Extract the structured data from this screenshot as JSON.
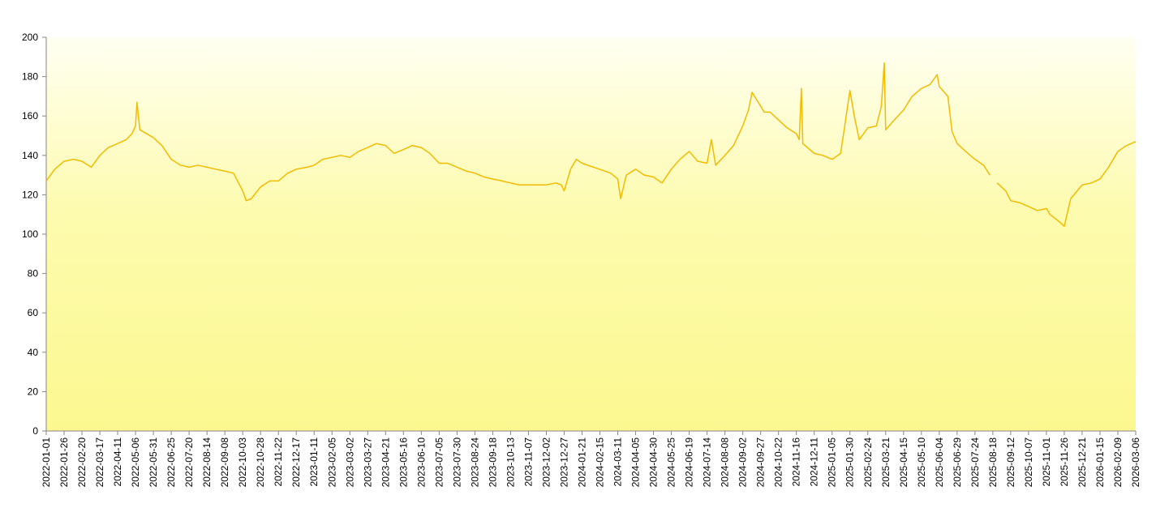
{
  "chart_data": {
    "type": "line",
    "color": "#f2bb00",
    "x": [
      "2022-01-01",
      "2022-01-13",
      "2022-01-26",
      "2022-02-08",
      "2022-02-20",
      "2022-03-05",
      "2022-03-17",
      "2022-03-29",
      "2022-04-11",
      "2022-04-23",
      "2022-05-01",
      "2022-05-06",
      "2022-05-08",
      "2022-05-12",
      "2022-05-31",
      "2022-06-12",
      "2022-06-25",
      "2022-07-08",
      "2022-07-20",
      "2022-08-01",
      "2022-08-14",
      "2022-08-26",
      "2022-09-08",
      "2022-09-20",
      "2022-10-03",
      "2022-10-08",
      "2022-10-15",
      "2022-10-28",
      "2022-11-10",
      "2022-11-22",
      "2022-12-05",
      "2022-12-17",
      "2023-01-01",
      "2023-01-11",
      "2023-01-23",
      "2023-02-05",
      "2023-02-17",
      "2023-03-02",
      "2023-03-14",
      "2023-03-27",
      "2023-04-08",
      "2023-04-21",
      "2023-05-03",
      "2023-05-16",
      "2023-05-28",
      "2023-06-10",
      "2023-06-22",
      "2023-07-05",
      "2023-07-17",
      "2023-07-30",
      "2023-08-12",
      "2023-08-24",
      "2023-09-06",
      "2023-09-18",
      "2023-10-01",
      "2023-10-13",
      "2023-10-25",
      "2023-11-07",
      "2023-11-20",
      "2023-12-02",
      "2023-12-15",
      "2023-12-23",
      "2023-12-27",
      "2024-01-05",
      "2024-01-13",
      "2024-01-21",
      "2024-03-01",
      "2024-03-11",
      "2024-03-15",
      "2024-03-23",
      "2024-04-05",
      "2024-04-17",
      "2024-04-30",
      "2024-05-12",
      "2024-05-25",
      "2024-06-06",
      "2024-06-19",
      "2024-07-01",
      "2024-07-14",
      "2024-07-20",
      "2024-07-26",
      "2024-08-08",
      "2024-08-20",
      "2024-09-02",
      "2024-09-10",
      "2024-09-15",
      "2024-09-27",
      "2024-10-02",
      "2024-10-10",
      "2024-10-22",
      "2024-11-03",
      "2024-11-16",
      "2024-11-20",
      "2024-11-23",
      "2024-11-25",
      "2024-12-11",
      "2024-12-23",
      "2025-01-05",
      "2025-01-17",
      "2025-01-30",
      "2025-02-05",
      "2025-02-12",
      "2025-02-24",
      "2025-03-08",
      "2025-03-15",
      "2025-03-19",
      "2025-03-21",
      "2025-04-02",
      "2025-04-15",
      "2025-04-27",
      "2025-05-10",
      "2025-05-22",
      "2025-06-01",
      "2025-06-04",
      "2025-06-16",
      "2025-06-22",
      "2025-06-29",
      "2025-07-11",
      "2025-07-24",
      "2025-08-05",
      "2025-08-14",
      "2025-08-18",
      "2025-08-24",
      "2025-09-05",
      "2025-09-12",
      "2025-09-24",
      "2025-10-07",
      "2025-10-19",
      "2025-11-01",
      "2025-11-06",
      "2025-11-20",
      "2025-11-26",
      "2025-12-05",
      "2025-12-21",
      "2026-01-03",
      "2026-01-15",
      "2026-01-27",
      "2026-02-09",
      "2026-02-21",
      "2026-03-06"
    ],
    "values": [
      127,
      133,
      137,
      138,
      137,
      134,
      140,
      144,
      146,
      148,
      151,
      155,
      167,
      153,
      149,
      145,
      138,
      135,
      134,
      135,
      134,
      133,
      132,
      131,
      122,
      117,
      118,
      124,
      127,
      127,
      131,
      133,
      134,
      135,
      138,
      139,
      140,
      139,
      142,
      144,
      146,
      145,
      141,
      143,
      145,
      144,
      141,
      136,
      136,
      134,
      132,
      131,
      129,
      128,
      127,
      126,
      125,
      125,
      125,
      125,
      126,
      125,
      122,
      133,
      138,
      136,
      131,
      128,
      118,
      130,
      133,
      130,
      129,
      126,
      133,
      138,
      142,
      137,
      136,
      148,
      135,
      140,
      145,
      155,
      163,
      172,
      165,
      162,
      162,
      158,
      154,
      151,
      148,
      174,
      146,
      141,
      140,
      138,
      141,
      173,
      160,
      148,
      154,
      155,
      165,
      187,
      153,
      158,
      163,
      170,
      174,
      176,
      181,
      175,
      170,
      152,
      146,
      142,
      138,
      135,
      130,
      null,
      126,
      122,
      117,
      116,
      114,
      112,
      113,
      110,
      106,
      104,
      118,
      125,
      126,
      128,
      134,
      142,
      145,
      147
    ],
    "xlim": [
      "2022-01-01",
      "2026-03-06"
    ],
    "xticks": [
      "2022-01-01",
      "2022-01-26",
      "2022-02-20",
      "2022-03-17",
      "2022-04-11",
      "2022-05-06",
      "2022-05-31",
      "2022-06-25",
      "2022-07-20",
      "2022-08-14",
      "2022-09-08",
      "2022-10-03",
      "2022-10-28",
      "2022-11-22",
      "2022-12-17",
      "2023-01-11",
      "2023-02-05",
      "2023-03-02",
      "2023-03-27",
      "2023-04-21",
      "2023-05-16",
      "2023-06-10",
      "2023-07-05",
      "2023-07-30",
      "2023-08-24",
      "2023-09-18",
      "2023-10-13",
      "2023-11-07",
      "2023-12-02",
      "2023-12-27",
      "2024-01-21",
      "2024-02-15",
      "2024-03-11",
      "2024-04-05",
      "2024-04-30",
      "2024-05-25",
      "2024-06-19",
      "2024-07-14",
      "2024-08-08",
      "2024-09-02",
      "2024-09-27",
      "2024-10-22",
      "2024-11-16",
      "2024-12-11",
      "2025-01-05",
      "2025-01-30",
      "2025-02-24",
      "2025-03-21",
      "2025-04-15",
      "2025-05-10",
      "2025-06-04",
      "2025-06-29",
      "2025-07-24",
      "2025-08-18",
      "2025-09-12",
      "2025-10-07",
      "2025-11-01",
      "2025-11-26",
      "2025-12-21",
      "2026-01-15",
      "2026-02-09",
      "2026-03-06"
    ],
    "ylim": [
      0,
      200
    ],
    "yticks": [
      0,
      20,
      40,
      60,
      80,
      100,
      120,
      140,
      160,
      180,
      200
    ]
  }
}
